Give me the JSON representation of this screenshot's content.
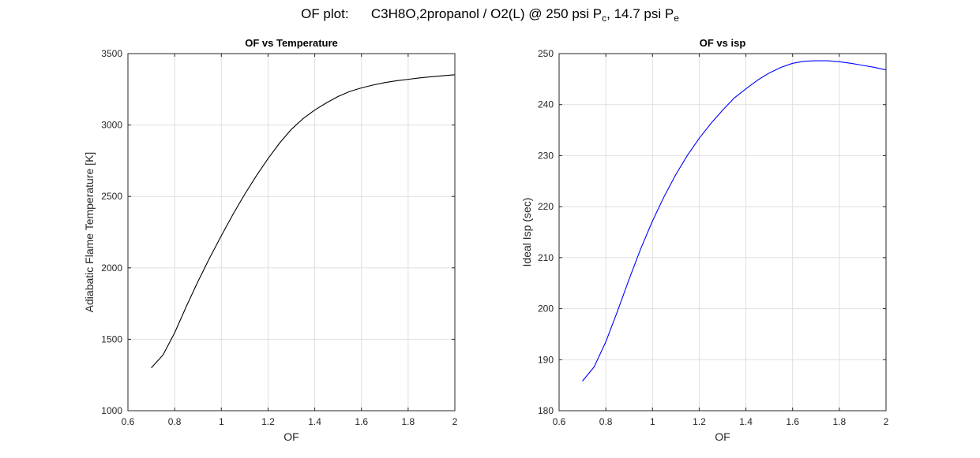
{
  "suptitle": {
    "prefix": "OF plot:      C3H8O,2propanol / O2(L) @ 250 psi P",
    "sub1": "c",
    "mid": ", 14.7 psi P",
    "sub2": "e"
  },
  "chart_data": [
    {
      "type": "line",
      "title": "OF vs Temperature",
      "xlabel": "OF",
      "ylabel": "Adiabatic Flame Temperature [K]",
      "xlim": [
        0.6,
        2
      ],
      "ylim": [
        1000,
        3500
      ],
      "xticks": [
        "0.6",
        "0.8",
        "1",
        "1.2",
        "1.4",
        "1.6",
        "1.8",
        "2"
      ],
      "yticks": [
        "1000",
        "1500",
        "2000",
        "2500",
        "3000",
        "3500"
      ],
      "grid": true,
      "color": "#000000",
      "x": [
        0.7,
        0.75,
        0.8,
        0.85,
        0.9,
        0.95,
        1.0,
        1.05,
        1.1,
        1.15,
        1.2,
        1.25,
        1.3,
        1.35,
        1.4,
        1.45,
        1.5,
        1.55,
        1.6,
        1.65,
        1.7,
        1.75,
        1.8,
        1.85,
        1.9,
        1.95,
        2.0
      ],
      "y": [
        1300,
        1390,
        1545,
        1730,
        1905,
        2070,
        2225,
        2375,
        2515,
        2645,
        2765,
        2875,
        2970,
        3045,
        3105,
        3155,
        3200,
        3235,
        3260,
        3280,
        3297,
        3310,
        3320,
        3330,
        3338,
        3345,
        3352
      ]
    },
    {
      "type": "line",
      "title": "OF vs isp",
      "xlabel": "OF",
      "ylabel": "Ideal Isp (sec)",
      "xlim": [
        0.6,
        2
      ],
      "ylim": [
        180,
        250
      ],
      "xticks": [
        "0.6",
        "0.8",
        "1",
        "1.2",
        "1.4",
        "1.6",
        "1.8",
        "2"
      ],
      "yticks": [
        "180",
        "190",
        "200",
        "210",
        "220",
        "230",
        "240",
        "250"
      ],
      "grid": true,
      "color": "#0000ff",
      "x": [
        0.7,
        0.75,
        0.8,
        0.85,
        0.9,
        0.95,
        1.0,
        1.05,
        1.1,
        1.15,
        1.2,
        1.25,
        1.3,
        1.35,
        1.4,
        1.45,
        1.5,
        1.55,
        1.6,
        1.65,
        1.7,
        1.75,
        1.8,
        1.85,
        1.9,
        1.95,
        2.0
      ],
      "y": [
        185.8,
        188.6,
        193.5,
        199.5,
        205.8,
        211.8,
        217.2,
        222.0,
        226.3,
        230.1,
        233.4,
        236.3,
        238.9,
        241.3,
        243.1,
        244.8,
        246.2,
        247.3,
        248.1,
        248.5,
        248.6,
        248.6,
        248.4,
        248.1,
        247.7,
        247.3,
        246.8
      ]
    }
  ]
}
